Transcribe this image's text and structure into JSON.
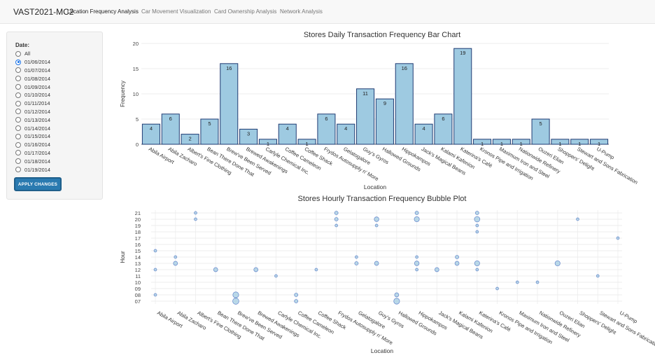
{
  "navbar": {
    "brand": "VAST2021-MC2",
    "links": [
      {
        "label": "Location Frequency Analysis",
        "active": true
      },
      {
        "label": "Car Movement Visualization",
        "active": false
      },
      {
        "label": "Card Ownership Analysis",
        "active": false
      },
      {
        "label": "Network Analysis",
        "active": false
      }
    ]
  },
  "sidebar": {
    "date_label": "Date:",
    "options": [
      "All",
      "01/06/2014",
      "01/07/2014",
      "01/08/2014",
      "01/09/2014",
      "01/10/2014",
      "01/11/2014",
      "01/12/2014",
      "01/13/2014",
      "01/14/2014",
      "01/15/2014",
      "01/16/2014",
      "01/17/2014",
      "01/18/2014",
      "01/19/2014"
    ],
    "selected": "01/06/2014",
    "apply_label": "APPLY CHANGES"
  },
  "chart_data": [
    {
      "type": "bar",
      "title": "Stores Daily Transaction Frequency Bar Chart",
      "xlabel": "Location",
      "ylabel": "Frequency",
      "ylim": [
        0,
        20
      ],
      "yticks": [
        0,
        5,
        10,
        15,
        20
      ],
      "categories": [
        "Abila Airport",
        "Abila Zacharo",
        "Albert's Fine Clothing",
        "Bean There Done That",
        "Brew've Been Served",
        "Brewed Awakenings",
        "Carlyle Chemical Inc.",
        "Coffee Cameleon",
        "Coffee Shack",
        "Frydos Autosupply n' More",
        "Gelatogalore",
        "Guy's Gyros",
        "Hallowed Grounds",
        "Hippokampos",
        "Jack's Magical Beans",
        "Kalami Kafenion",
        "Katerina's Café",
        "Kronos Pipe and Irrigation",
        "Maximum Iron and Steel",
        "Nationwide Refinery",
        "Ouzeri Elian",
        "Shoppers' Delight",
        "Stewart and Sons Fabrication",
        "U-Pump"
      ],
      "values": [
        4,
        6,
        2,
        5,
        16,
        3,
        1,
        4,
        1,
        6,
        4,
        11,
        9,
        16,
        4,
        6,
        19,
        1,
        1,
        1,
        5,
        1,
        1,
        1
      ],
      "bar_color": "#9ecae1",
      "grid": true
    },
    {
      "type": "scatter",
      "title": "Stores Hourly Transaction Frequency Bubble Plot",
      "xlabel": "Location",
      "ylabel": "Hour",
      "yticks": [
        "07",
        "08",
        "09",
        "10",
        "11",
        "12",
        "13",
        "14",
        "15",
        "16",
        "17",
        "18",
        "19",
        "20",
        "21"
      ],
      "categories": [
        "Abila Airport",
        "Abila Zacharo",
        "Albert's Fine Clothing",
        "Bean There Done That",
        "Brew've Been Served",
        "Brewed Awakenings",
        "Carlyle Chemical Inc.",
        "Coffee Cameleon",
        "Coffee Shack",
        "Frydos Autosupply n' More",
        "Gelatogalore",
        "Guy's Gyros",
        "Hallowed Grounds",
        "Hippokampos",
        "Jack's Magical Beans",
        "Kalami Kafenion",
        "Katerina's Café",
        "Kronos Pipe and Irrigation",
        "Maximum Iron and Steel",
        "Nationwide Refinery",
        "Ouzeri Elian",
        "Shoppers' Delight",
        "Stewart and Sons Fabrication",
        "U-Pump"
      ],
      "points": [
        {
          "x": "Abila Airport",
          "y": 8,
          "size": 1
        },
        {
          "x": "Abila Airport",
          "y": 12,
          "size": 1
        },
        {
          "x": "Abila Airport",
          "y": 15,
          "size": 1
        },
        {
          "x": "Abila Zacharo",
          "y": 13,
          "size": 3
        },
        {
          "x": "Abila Zacharo",
          "y": 14,
          "size": 1
        },
        {
          "x": "Albert's Fine Clothing",
          "y": 20,
          "size": 1
        },
        {
          "x": "Albert's Fine Clothing",
          "y": 21,
          "size": 1
        },
        {
          "x": "Bean There Done That",
          "y": 12,
          "size": 3
        },
        {
          "x": "Brew've Been Served",
          "y": 7,
          "size": 8
        },
        {
          "x": "Brew've Been Served",
          "y": 8,
          "size": 7
        },
        {
          "x": "Brewed Awakenings",
          "y": 12,
          "size": 3
        },
        {
          "x": "Carlyle Chemical Inc.",
          "y": 11,
          "size": 1
        },
        {
          "x": "Coffee Cameleon",
          "y": 7,
          "size": 2
        },
        {
          "x": "Coffee Cameleon",
          "y": 8,
          "size": 2
        },
        {
          "x": "Coffee Shack",
          "y": 12,
          "size": 1
        },
        {
          "x": "Frydos Autosupply n' More",
          "y": 19,
          "size": 1
        },
        {
          "x": "Frydos Autosupply n' More",
          "y": 20,
          "size": 2
        },
        {
          "x": "Frydos Autosupply n' More",
          "y": 21,
          "size": 2
        },
        {
          "x": "Gelatogalore",
          "y": 13,
          "size": 2
        },
        {
          "x": "Gelatogalore",
          "y": 14,
          "size": 1
        },
        {
          "x": "Guy's Gyros",
          "y": 13,
          "size": 3
        },
        {
          "x": "Guy's Gyros",
          "y": 19,
          "size": 1
        },
        {
          "x": "Guy's Gyros",
          "y": 20,
          "size": 4
        },
        {
          "x": "Hallowed Grounds",
          "y": 7,
          "size": 7
        },
        {
          "x": "Hallowed Grounds",
          "y": 8,
          "size": 3
        },
        {
          "x": "Hippokampos",
          "y": 12,
          "size": 1
        },
        {
          "x": "Hippokampos",
          "y": 13,
          "size": 4
        },
        {
          "x": "Hippokampos",
          "y": 14,
          "size": 1
        },
        {
          "x": "Hippokampos",
          "y": 20,
          "size": 5
        },
        {
          "x": "Hippokampos",
          "y": 21,
          "size": 2
        },
        {
          "x": "Jack's Magical Beans",
          "y": 12,
          "size": 3
        },
        {
          "x": "Kalami Kafenion",
          "y": 13,
          "size": 3
        },
        {
          "x": "Kalami Kafenion",
          "y": 14,
          "size": 2
        },
        {
          "x": "Katerina's Café",
          "y": 12,
          "size": 1
        },
        {
          "x": "Katerina's Café",
          "y": 13,
          "size": 5
        },
        {
          "x": "Katerina's Café",
          "y": 18,
          "size": 1
        },
        {
          "x": "Katerina's Café",
          "y": 19,
          "size": 1
        },
        {
          "x": "Katerina's Café",
          "y": 20,
          "size": 6
        },
        {
          "x": "Katerina's Café",
          "y": 21,
          "size": 2
        },
        {
          "x": "Kronos Pipe and Irrigation",
          "y": 9,
          "size": 1
        },
        {
          "x": "Maximum Iron and Steel",
          "y": 10,
          "size": 1
        },
        {
          "x": "Nationwide Refinery",
          "y": 10,
          "size": 1
        },
        {
          "x": "Ouzeri Elian",
          "y": 13,
          "size": 5
        },
        {
          "x": "Shoppers' Delight",
          "y": 20,
          "size": 1
        },
        {
          "x": "Stewart and Sons Fabrication",
          "y": 11,
          "size": 1
        },
        {
          "x": "U-Pump",
          "y": 17,
          "size": 1
        }
      ],
      "marker_color": "#9ecae1",
      "marker_edge": "#6f8fcf",
      "grid": true
    }
  ]
}
